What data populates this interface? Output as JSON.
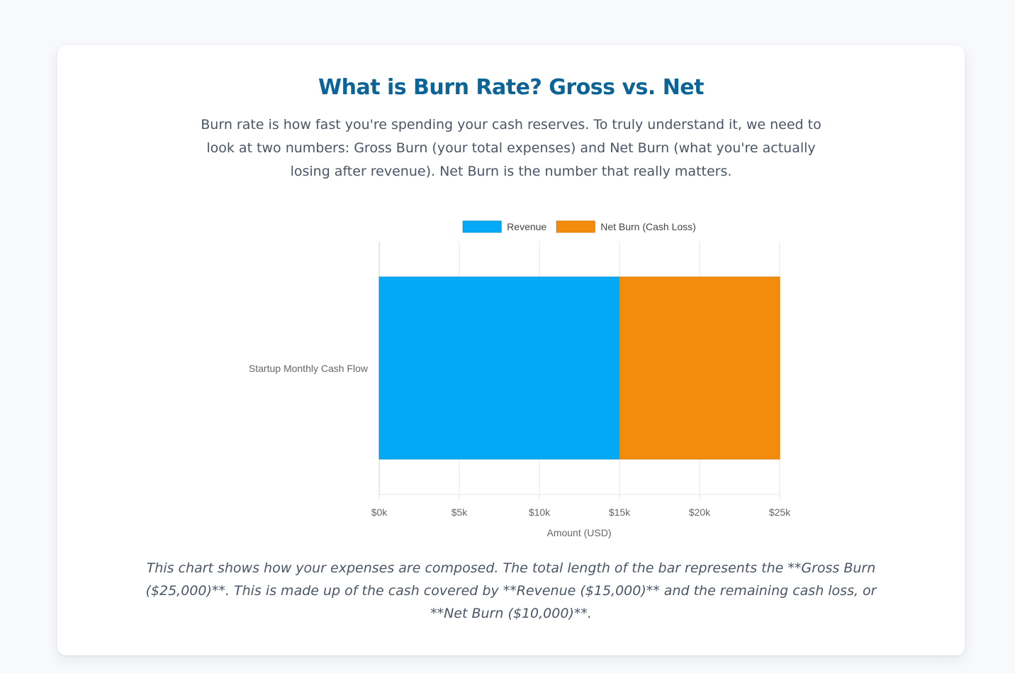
{
  "header": {
    "title": "What is Burn Rate? Gross vs. Net",
    "intro": "Burn rate is how fast you're spending your cash reserves. To truly understand it, we need to look at two numbers: Gross Burn (your total expenses) and Net Burn (what you're actually losing after revenue). Net Burn is the number that really matters."
  },
  "chart_data": {
    "type": "bar",
    "orientation": "horizontal",
    "stacked": true,
    "categories": [
      "Startup Monthly Cash Flow"
    ],
    "series": [
      {
        "name": "Revenue",
        "values": [
          15000
        ],
        "color": "#03a9f4"
      },
      {
        "name": "Net Burn (Cash Loss)",
        "values": [
          10000
        ],
        "color": "#f28c0c"
      }
    ],
    "xlabel": "Amount (USD)",
    "ylabel": "",
    "xlim": [
      0,
      25000
    ],
    "xticks": [
      "$0k",
      "$5k",
      "$10k",
      "$15k",
      "$20k",
      "$25k"
    ],
    "grid": true,
    "legend": "top"
  },
  "footer": {
    "note": "This chart shows how your expenses are composed. The total length of the bar represents the **Gross Burn ($25,000)**. This is made up of the cash covered by **Revenue ($15,000)** and the remaining cash loss, or **Net Burn ($10,000)**."
  }
}
